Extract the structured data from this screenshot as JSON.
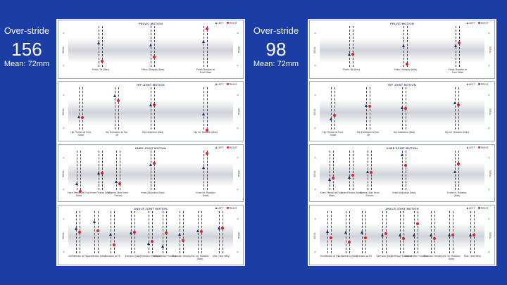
{
  "stats": [
    {
      "label": "Over-stride",
      "value": "156",
      "mean": "Mean: 72mm"
    },
    {
      "label": "Over-stride",
      "value": "98",
      "mean": "Mean: 72mm"
    }
  ],
  "colors": {
    "background": "#1b3da6",
    "left": "#1a2c6e",
    "right": "#e0212e"
  },
  "legend": {
    "left": "LEFT",
    "right": "RIGHT"
  },
  "sheets": [
    {
      "panels": [
        {
          "title": "PELVIC MOTION",
          "side_left": "IDEAL",
          "side_right": "IDEAL",
          "labels": [
            "Pelvic Tilt (Max)",
            "Pelvic Obliquity (Max)",
            "Pelvic Rotation at Foot Strike"
          ]
        },
        {
          "title": "HIP JOINT MOTION",
          "side_left": "IDEAL",
          "side_right": "IDEAL",
          "labels": [
            "Hip Flexion at Foot-Strike",
            "Hip Extension at Toe-Off",
            "Hip Adduction (Max)",
            "Hip Int. Rotation (Max)"
          ]
        },
        {
          "title": "KNEE JOINT MOTION",
          "side_left": "IDEAL",
          "side_right": "IDEAL",
          "labels": [
            "Knee Flexion at Foot-Strike",
            "Knee Flexion (Max)",
            "Extens. Max Knee Flexion",
            "Knee Adduction (Max)",
            "Knee Int. Rotation (Max)"
          ]
        },
        {
          "title": "ANKLE JOINT MOTION",
          "side_left": "IDEAL",
          "side_right": "IDEAL",
          "labels": [
            "Dorsiflexion at FS",
            "Dorsiflexion (Max)",
            "Eversion at FS",
            "Eversion (Max)",
            "Eversion Excursion",
            "Time of Max Pronation",
            "Eversion Velocity",
            "Ext. Int. Rotation (Max)",
            "Max. Heel Whip"
          ]
        }
      ]
    },
    {
      "panels": [
        {
          "title": "PELVIC MOTION",
          "side_left": "IDEAL",
          "side_right": "IDEAL",
          "labels": [
            "Pelvic Tilt (Max)",
            "Pelvic Obliquity (Max)",
            "Pelvic Rotation at Foot Strike"
          ]
        },
        {
          "title": "HIP JOINT MOTION",
          "side_left": "IDEAL",
          "side_right": "IDEAL",
          "labels": [
            "Hip Flexion at Foot-Strike",
            "Hip Extension at Toe-Off",
            "Hip Adduction (Max)",
            "Hip Int. Rotation (Max)"
          ]
        },
        {
          "title": "KNEE JOINT MOTION",
          "side_left": "IDEAL",
          "side_right": "IDEAL",
          "labels": [
            "Knee Flexion at Foot-Strike",
            "Knee Flexion (Max)",
            "Extens. Max Knee Flexion",
            "Knee Adduction (Max)",
            "Knee Int. Rotation (Max)"
          ]
        },
        {
          "title": "ANKLE JOINT MOTION",
          "side_left": "IDEAL",
          "side_right": "IDEAL",
          "labels": [
            "Dorsiflexion at FS",
            "Dorsiflexion (Max)",
            "Eversion at FS",
            "Eversion (Max)",
            "Eversion Excursion",
            "Time of Max Pronation",
            "Eversion Velocity",
            "Ext. Int. Rotation (Max)",
            "Max. Heel Whip"
          ]
        }
      ]
    }
  ]
}
